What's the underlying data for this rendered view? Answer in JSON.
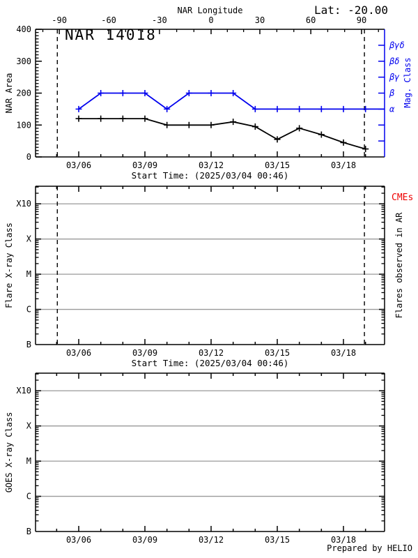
{
  "header": {
    "title": "NAR 14018",
    "lat_label": "Lat: -20.00"
  },
  "footer": {
    "prepared_by": "Prepared by HELIO"
  },
  "colors": {
    "axis": "#000000",
    "mag_blue": "#0000ee",
    "grid": "#999999",
    "cme_red": "#ee0000",
    "background": "#ffffff"
  },
  "chart_data": [
    {
      "type": "line",
      "panel": "nar-area",
      "title": "NAR 14018",
      "top_axis": {
        "label": "NAR Longitude",
        "tick_labels": [
          "-90",
          "-60",
          "-30",
          "0",
          "30",
          "60",
          "90"
        ],
        "tick_days": [
          5.12,
          7.36,
          9.66,
          12.0,
          14.21,
          16.52,
          18.82
        ]
      },
      "x_axis": {
        "label": "Start Time: (2025/03/04 00:46)",
        "tick_labels": [
          "03/06",
          "03/09",
          "03/12",
          "03/15",
          "03/18"
        ],
        "tick_days": [
          6,
          9,
          12,
          15,
          18
        ],
        "minor_day_start": 5,
        "minor_day_end": 19,
        "range_days": [
          4.03,
          19.86
        ]
      },
      "y_axis": {
        "label": "NAR Area",
        "tick_values": [
          0,
          100,
          200,
          300,
          400
        ],
        "minor_step": 10,
        "range": [
          0,
          400
        ]
      },
      "right_axis": {
        "label": "Mag. Class",
        "tick_values": [
          50,
          100,
          150,
          200,
          250,
          300,
          350
        ],
        "tick_labels": [
          "",
          "",
          "α",
          "β",
          "βγ",
          "βδ",
          "βγδ"
        ]
      },
      "dashed_days": [
        5.03,
        18.95
      ],
      "series": [
        {
          "name": "NAR area",
          "color": "axis",
          "marker": "plus",
          "days": [
            6,
            7,
            8,
            9,
            10,
            11,
            12,
            13,
            14,
            15,
            16,
            17,
            18,
            19
          ],
          "values": [
            120,
            120,
            120,
            120,
            100,
            100,
            100,
            110,
            95,
            55,
            90,
            70,
            45,
            25
          ]
        },
        {
          "name": "Magnetic class",
          "color": "mag_blue",
          "marker": "plus",
          "days": [
            6,
            7,
            8,
            9,
            10,
            11,
            12,
            13,
            14,
            15,
            16,
            17,
            18,
            19
          ],
          "values": [
            150,
            200,
            200,
            200,
            150,
            200,
            200,
            200,
            150,
            150,
            150,
            150,
            150,
            150
          ],
          "class_labels": [
            "α",
            "β",
            "β",
            "β",
            "α",
            "β",
            "β",
            "β",
            "α",
            "α",
            "α",
            "α",
            "α",
            "α"
          ],
          "extend_to_day": 19.86
        }
      ]
    },
    {
      "type": "line",
      "panel": "flare-xray",
      "x_axis": {
        "label": "Start Time: (2025/03/04 00:46)",
        "tick_labels": [
          "03/06",
          "03/09",
          "03/12",
          "03/15",
          "03/18"
        ],
        "tick_days": [
          6,
          9,
          12,
          15,
          18
        ],
        "minor_day_start": 5,
        "minor_day_end": 19,
        "range_days": [
          4.03,
          19.86
        ]
      },
      "y_axis": {
        "label": "Flare X-ray Class",
        "scale": "log",
        "tick_labels": [
          "B",
          "C",
          "M",
          "X",
          "X10"
        ],
        "decades_above_top_tick": 0.5
      },
      "grid_decades": [
        1,
        2,
        3,
        4
      ],
      "right_label": "Flares observed in AR",
      "annotation": {
        "text": "CMEs",
        "color": "cme_red"
      },
      "dashed_days": [
        5.03,
        18.95
      ],
      "series": []
    },
    {
      "type": "line",
      "panel": "goes-xray",
      "x_axis": {
        "label": "",
        "tick_labels": [
          "03/06",
          "03/09",
          "03/12",
          "03/15",
          "03/18"
        ],
        "tick_days": [
          6,
          9,
          12,
          15,
          18
        ],
        "minor_day_start": 5,
        "minor_day_end": 19,
        "range_days": [
          4.03,
          19.86
        ]
      },
      "y_axis": {
        "label": "GOES X-ray Class",
        "scale": "log",
        "tick_labels": [
          "B",
          "C",
          "M",
          "X",
          "X10"
        ],
        "decades_above_top_tick": 0.5
      },
      "grid_decades": [
        1,
        2,
        3,
        4
      ],
      "series": []
    }
  ]
}
